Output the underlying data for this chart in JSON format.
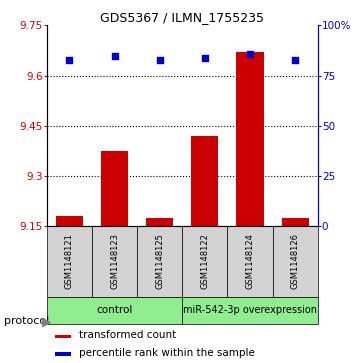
{
  "title": "GDS5367 / ILMN_1755235",
  "samples": [
    "GSM1148121",
    "GSM1148123",
    "GSM1148125",
    "GSM1148122",
    "GSM1148124",
    "GSM1148126"
  ],
  "red_bar_values": [
    9.18,
    9.375,
    9.175,
    9.42,
    9.67,
    9.175
  ],
  "blue_dot_values": [
    83,
    85,
    83,
    84,
    86,
    83
  ],
  "ylim_left": [
    9.15,
    9.75
  ],
  "ylim_right": [
    0,
    100
  ],
  "yticks_left": [
    9.15,
    9.3,
    9.45,
    9.6,
    9.75
  ],
  "yticks_right": [
    0,
    25,
    50,
    75,
    100
  ],
  "ytick_right_labels": [
    "0",
    "25",
    "50",
    "75",
    "100%"
  ],
  "hlines": [
    9.3,
    9.45,
    9.6
  ],
  "bar_color": "#cc0000",
  "dot_color": "#0000cc",
  "sample_box_color": "#d3d3d3",
  "group_box_color": "#90EE90",
  "control_label": "control",
  "mir_label": "miR-542-3p overexpression",
  "legend_label_red": "transformed count",
  "legend_label_blue": "percentile rank within the sample",
  "protocol_label": "protocol",
  "bar_width": 0.6,
  "title_fontsize": 9,
  "tick_fontsize": 7.5,
  "sample_fontsize": 6,
  "group_fontsize": 7.5,
  "legend_fontsize": 7.5
}
